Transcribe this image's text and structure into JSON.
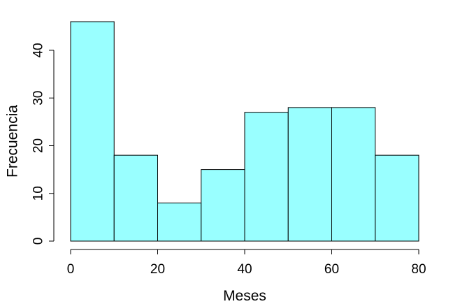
{
  "chart_data": {
    "type": "histogram",
    "xlabel": "Meses",
    "ylabel": "Frecuencia",
    "bins": [
      {
        "start": 0,
        "end": 10,
        "count": 46
      },
      {
        "start": 10,
        "end": 20,
        "count": 18
      },
      {
        "start": 20,
        "end": 30,
        "count": 8
      },
      {
        "start": 30,
        "end": 40,
        "count": 15
      },
      {
        "start": 40,
        "end": 50,
        "count": 27
      },
      {
        "start": 50,
        "end": 60,
        "count": 28
      },
      {
        "start": 60,
        "end": 70,
        "count": 28
      },
      {
        "start": 70,
        "end": 80,
        "count": 18
      }
    ],
    "xlim": [
      0,
      80
    ],
    "ylim": [
      0,
      46
    ],
    "xticks": [
      0,
      20,
      40,
      60,
      80
    ],
    "xtick_labels": [
      "0",
      "20",
      "40",
      "60",
      "80"
    ],
    "yticks": [
      0,
      10,
      20,
      30,
      40
    ],
    "ytick_labels": [
      "0",
      "10",
      "20",
      "30",
      "40"
    ],
    "bar_color": "#99ffff",
    "edge_color": "#000000",
    "grid": false,
    "legend": "none"
  }
}
